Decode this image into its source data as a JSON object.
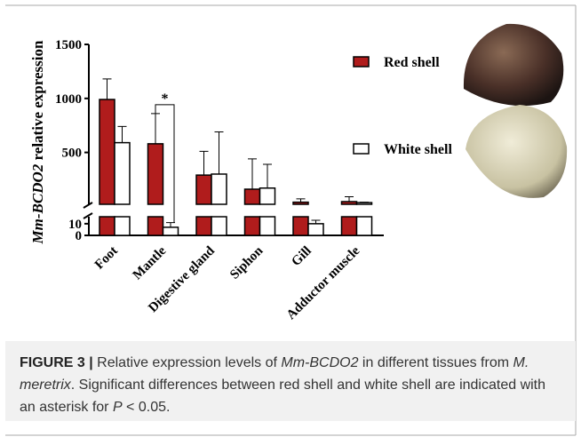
{
  "chart_data": {
    "type": "bar",
    "y_label": [
      "Mm-BCDO2",
      " relative expression"
    ],
    "categories": [
      "Foot",
      "Mantle",
      "Digestive gland",
      "Siphon",
      "Gill",
      "Adductor muscle"
    ],
    "series": [
      {
        "name": "Red shell",
        "color": "#b01c1c",
        "values": [
          990,
          580,
          290,
          160,
          40,
          45
        ],
        "errors": [
          190,
          280,
          220,
          280,
          30,
          45
        ]
      },
      {
        "name": "White shell",
        "color": "#ffffff",
        "values": [
          590,
          7,
          300,
          170,
          10,
          35
        ],
        "errors": [
          150,
          4,
          390,
          220,
          3,
          5
        ]
      }
    ],
    "y_segments": [
      {
        "ylim": [
          0,
          16
        ],
        "yticks": [
          0,
          10
        ]
      },
      {
        "ylim": [
          20,
          1500
        ],
        "yticks": [
          500,
          1000,
          1500
        ]
      }
    ],
    "annotation": "*"
  },
  "caption": {
    "label": "FIGURE 3 |",
    "parts": [
      " Relative expression levels of ",
      "Mm-BCDO2",
      " in different tissues from ",
      "M. meretrix",
      ". Significant differences between red shell and white shell are indicated with an asterisk for ",
      "P",
      " < 0.05."
    ]
  }
}
